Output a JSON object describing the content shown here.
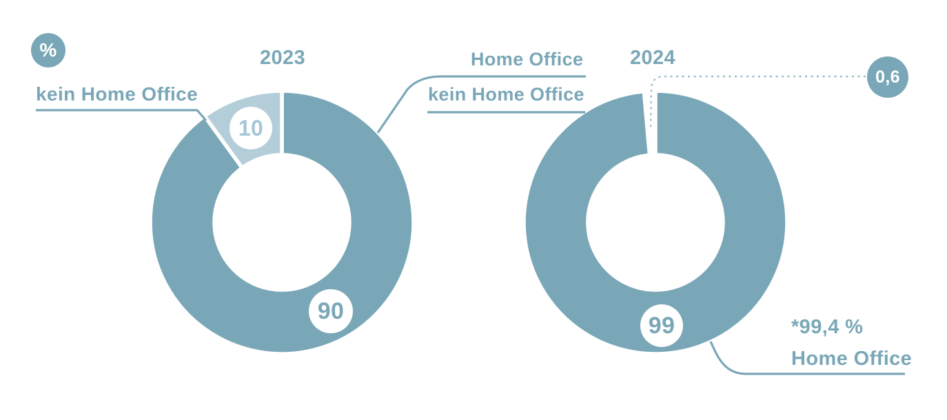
{
  "colors": {
    "teal": "#7AA7B7",
    "light_blue": "#B3CDD9",
    "light_badge_text": "#A5C6D4",
    "background": "#ffffff",
    "badge_text_white": "#ffffff"
  },
  "unit_badge": "%",
  "chart_data": [
    {
      "type": "pie",
      "variant": "donut",
      "title": "2023",
      "unit": "%",
      "slices": [
        {
          "label": "Home Office",
          "value": 90,
          "badge": "90",
          "color": "#7AA7B7"
        },
        {
          "label": "kein Home Office",
          "value": 10,
          "badge": "10",
          "color": "#B3CDD9"
        }
      ]
    },
    {
      "type": "pie",
      "variant": "donut",
      "title": "2024",
      "unit": "%",
      "slices": [
        {
          "label": "Home Office",
          "value": 99.4,
          "badge": "99",
          "display_value": "*99,4 %",
          "color": "#7AA7B7"
        },
        {
          "label": "kein Home Office",
          "value": 0.6,
          "badge": "0,6",
          "color": null
        }
      ]
    }
  ]
}
